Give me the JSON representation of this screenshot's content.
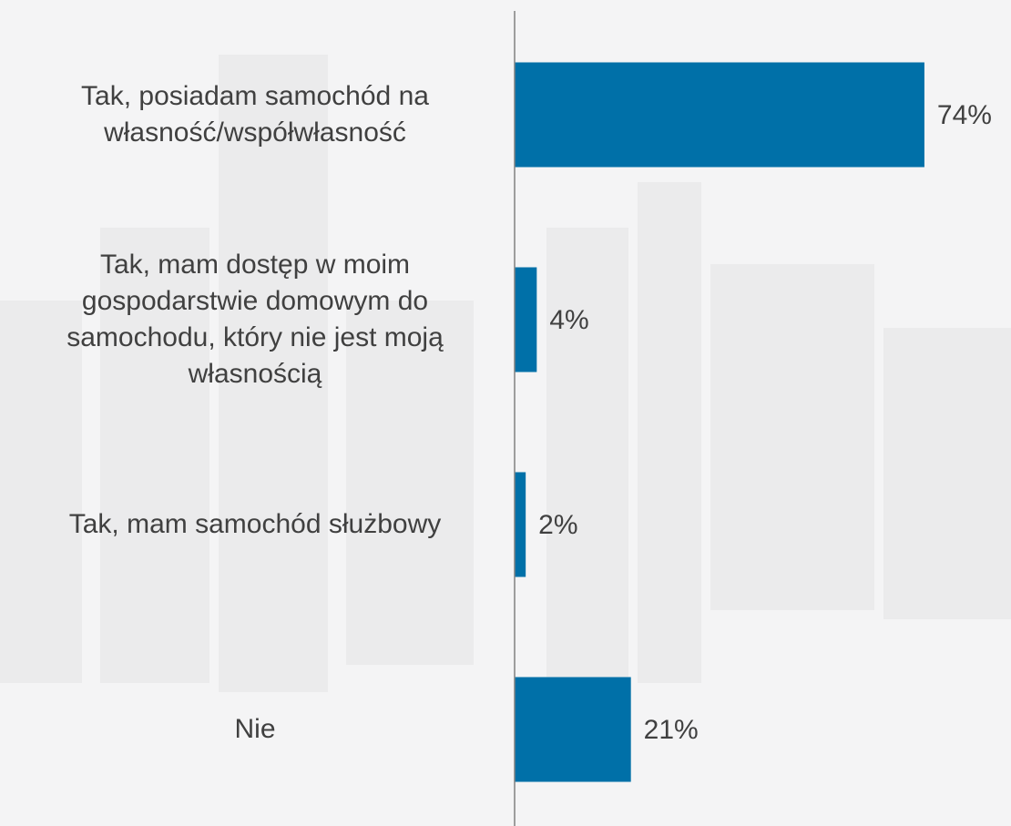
{
  "chart_data": {
    "type": "bar",
    "orientation": "horizontal",
    "categories": [
      "Tak, posiadam samochód na\nwłasność/współwłasność",
      "Tak, mam dostęp w moim\ngospodarstwie domowym do\nsamochodu, który nie jest moją\nwłasnością",
      "Tak, mam samochód służbowy",
      "Nie"
    ],
    "values": [
      74,
      4,
      2,
      21
    ],
    "value_labels": [
      "74%",
      "4%",
      "2%",
      "21%"
    ],
    "color": "#0070a8"
  }
}
